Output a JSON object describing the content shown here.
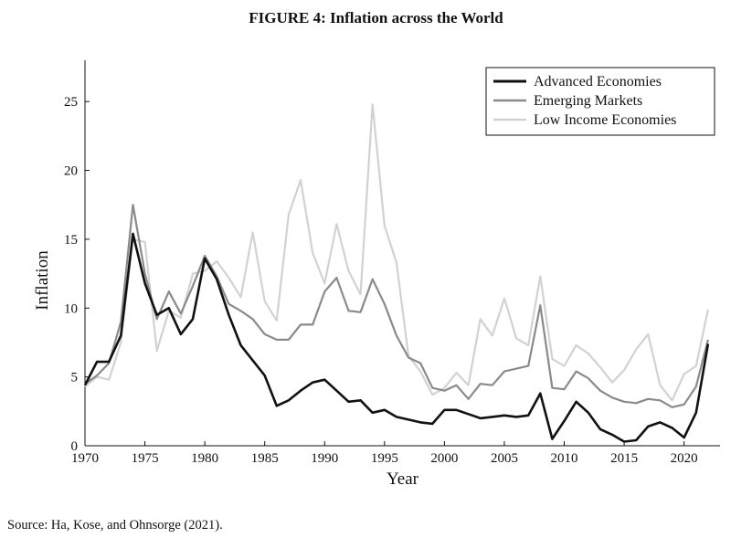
{
  "figure_title": "FIGURE 4: Inflation across the World",
  "source_note": "Source: Ha, Kose, and Ohnsorge (2021).",
  "chart_data": {
    "type": "line",
    "title": "FIGURE 4: Inflation across the World",
    "xlabel": "Year",
    "ylabel": "Inflation",
    "xlim": [
      1970,
      2023
    ],
    "ylim": [
      0,
      28
    ],
    "xticks": [
      1970,
      1975,
      1980,
      1985,
      1990,
      1995,
      2000,
      2005,
      2010,
      2015,
      2020
    ],
    "yticks": [
      0,
      5,
      10,
      15,
      20,
      25
    ],
    "grid": false,
    "legend_position": "top-right",
    "x": [
      1970,
      1971,
      1972,
      1973,
      1974,
      1975,
      1976,
      1977,
      1978,
      1979,
      1980,
      1981,
      1982,
      1983,
      1984,
      1985,
      1986,
      1987,
      1988,
      1989,
      1990,
      1991,
      1992,
      1993,
      1994,
      1995,
      1996,
      1997,
      1998,
      1999,
      2000,
      2001,
      2002,
      2003,
      2004,
      2005,
      2006,
      2007,
      2008,
      2009,
      2010,
      2011,
      2012,
      2013,
      2014,
      2015,
      2016,
      2017,
      2018,
      2019,
      2020,
      2021,
      2022
    ],
    "series": [
      {
        "name": "Advanced Economies",
        "color": "#111111",
        "width": 2.6,
        "values": [
          4.4,
          6.1,
          6.1,
          8.0,
          15.4,
          11.8,
          9.5,
          10.0,
          8.1,
          9.2,
          13.6,
          12.1,
          9.5,
          7.3,
          6.2,
          5.1,
          2.9,
          3.3,
          4.0,
          4.6,
          4.8,
          4.0,
          3.2,
          3.3,
          2.4,
          2.6,
          2.1,
          1.9,
          1.7,
          1.6,
          2.6,
          2.6,
          2.3,
          2.0,
          2.1,
          2.2,
          2.1,
          2.2,
          3.8,
          0.5,
          1.8,
          3.2,
          2.4,
          1.2,
          0.8,
          0.3,
          0.4,
          1.4,
          1.7,
          1.3,
          0.6,
          2.4,
          7.4
        ]
      },
      {
        "name": "Emerging Markets",
        "color": "#8a8a8a",
        "width": 2.2,
        "values": [
          4.5,
          5.1,
          6.0,
          9.0,
          17.5,
          12.5,
          9.2,
          11.2,
          9.6,
          11.6,
          13.8,
          12.3,
          10.3,
          9.8,
          9.2,
          8.1,
          7.7,
          7.7,
          8.8,
          8.8,
          11.2,
          12.2,
          9.8,
          9.7,
          12.1,
          10.3,
          8.0,
          6.4,
          6.0,
          4.2,
          4.0,
          4.4,
          3.4,
          4.5,
          4.4,
          5.4,
          5.6,
          5.8,
          10.2,
          4.2,
          4.1,
          5.4,
          4.9,
          4.0,
          3.5,
          3.2,
          3.1,
          3.4,
          3.3,
          2.8,
          3.0,
          4.3,
          7.7
        ]
      },
      {
        "name": "Low Income Economies",
        "color": "#d2d2d2",
        "width": 2.2,
        "values": [
          4.3,
          5.0,
          4.8,
          7.5,
          15.0,
          14.8,
          6.9,
          9.8,
          9.3,
          12.5,
          12.7,
          13.4,
          12.2,
          10.8,
          15.5,
          10.5,
          9.1,
          16.8,
          19.3,
          14.0,
          11.8,
          16.1,
          12.7,
          11.0,
          24.8,
          16.0,
          13.3,
          6.5,
          5.4,
          3.7,
          4.2,
          5.3,
          4.4,
          9.2,
          8.0,
          10.7,
          7.8,
          7.3,
          12.3,
          6.3,
          5.8,
          7.3,
          6.7,
          5.7,
          4.6,
          5.5,
          7.0,
          8.1,
          4.4,
          3.3,
          5.2,
          5.8,
          9.9
        ]
      }
    ]
  }
}
